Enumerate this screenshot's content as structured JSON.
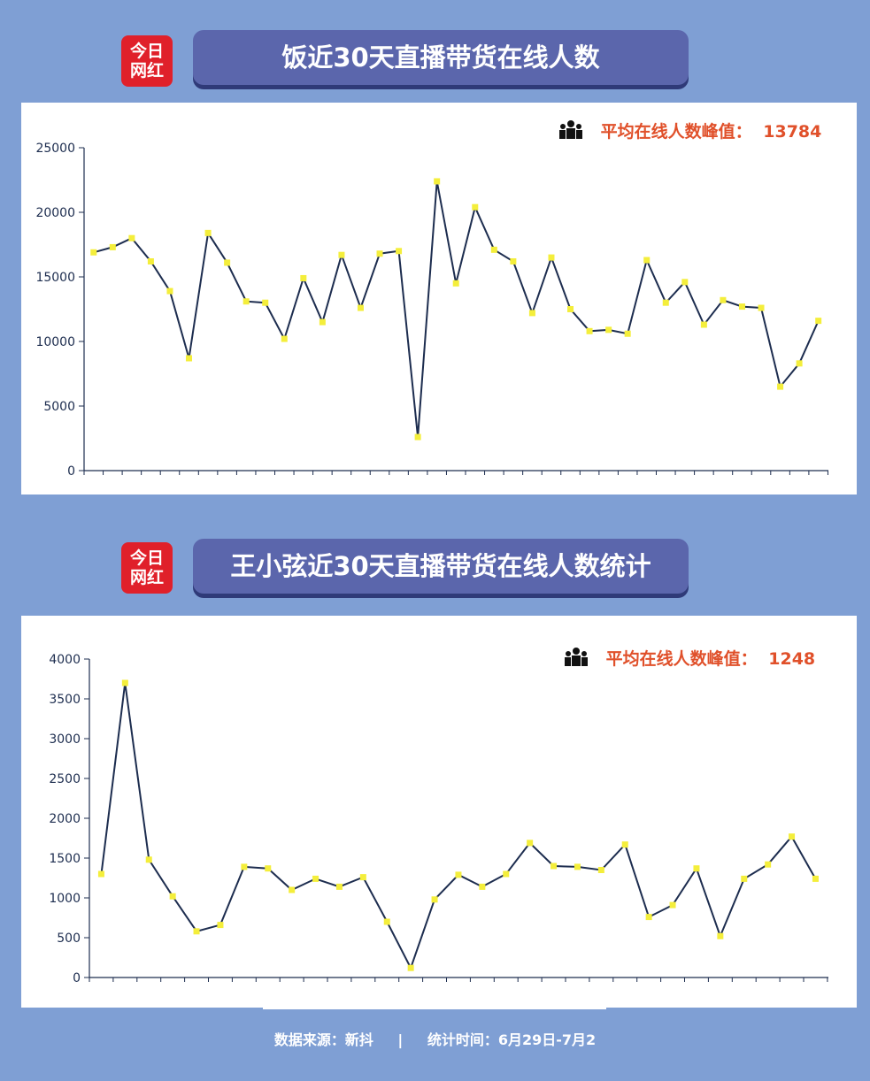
{
  "colors": {
    "background": "#7f9fd4",
    "banner": "#5b66ac",
    "line": "#1d2d4f",
    "marker": "#f4ee3b",
    "peak_text": "#e0502a",
    "logo": "#e0202a"
  },
  "logo": {
    "line1": "今日",
    "line2": "网红"
  },
  "chart1": {
    "title": "饭近30天直播带货在线人数",
    "peak_label": "平均在线人数峰值：",
    "peak_value": "13784"
  },
  "chart2": {
    "title": "王小弦近30天直播带货在线人数统计",
    "peak_label": "平均在线人数峰值：",
    "peak_value": "1248"
  },
  "footer": {
    "source": "数据来源：新抖",
    "separator": "|",
    "period": "统计时间：6月29日-7月2"
  },
  "chart_data": [
    {
      "type": "line",
      "title": "饭近30天直播带货在线人数",
      "ylim": [
        0,
        25000
      ],
      "yticks": [
        0,
        5000,
        10000,
        15000,
        20000,
        25000
      ],
      "grid": false,
      "series": [
        {
          "values": [
            16900,
            17300,
            18000,
            16200,
            13900,
            8700,
            18400,
            16100,
            13100,
            13000,
            10200,
            14900,
            11500,
            16700,
            12600,
            16800,
            17000,
            2600,
            22400,
            14500,
            20400,
            17100,
            16200,
            12200,
            16500,
            12500,
            10800,
            10900,
            10600,
            16300,
            13000,
            14600,
            11300,
            13200,
            12700,
            12600,
            6500,
            8300,
            11600
          ]
        }
      ]
    },
    {
      "type": "line",
      "title": "王小弦近30天直播带货在线人数统计",
      "ylim": [
        0,
        4000
      ],
      "yticks": [
        0,
        500,
        1000,
        1500,
        2000,
        2500,
        3000,
        3500,
        4000
      ],
      "grid": false,
      "series": [
        {
          "values": [
            1300,
            3700,
            1480,
            1020,
            580,
            660,
            1390,
            1370,
            1100,
            1240,
            1140,
            1260,
            700,
            120,
            980,
            1290,
            1140,
            1300,
            1690,
            1400,
            1390,
            1350,
            1670,
            760,
            910,
            1370,
            520,
            1240,
            1420,
            1770,
            1240
          ]
        }
      ]
    }
  ]
}
